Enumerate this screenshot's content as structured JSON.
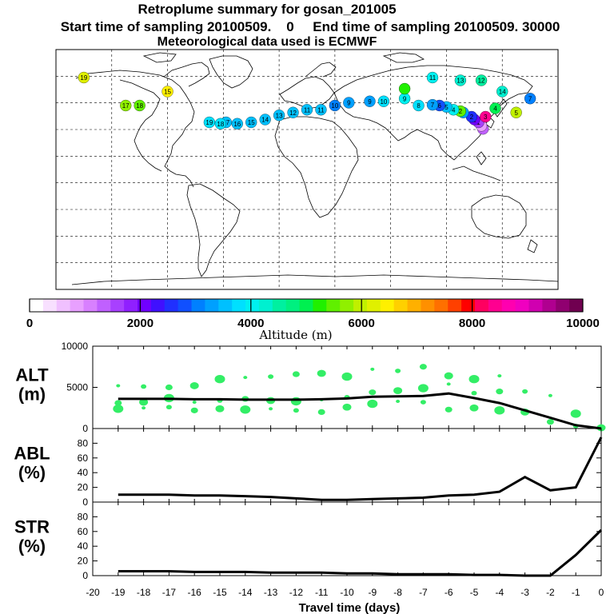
{
  "title": {
    "line1": "Retroplume summary for gosan_201005",
    "line2": "Start time of sampling 20100509.    0     End time of sampling 20100509. 30000",
    "line3": "Meteorological data used is ECMWF"
  },
  "colorbar": {
    "label": "Altitude (m)",
    "ticks": [
      "0",
      "2000",
      "4000",
      "6000",
      "8000",
      "10000"
    ],
    "colors": [
      "#ffffff",
      "#f8e0ff",
      "#f0c0ff",
      "#e8a0ff",
      "#d880ff",
      "#c060ff",
      "#a840ff",
      "#9020ff",
      "#7000ff",
      "#4010ff",
      "#2030ff",
      "#1050ff",
      "#0080ff",
      "#00a0ff",
      "#00c0ff",
      "#00e0ff",
      "#00f0f0",
      "#00f0d0",
      "#00f0a0",
      "#00f080",
      "#00f050",
      "#20f000",
      "#60f000",
      "#90f000",
      "#c0f000",
      "#e0f000",
      "#fff000",
      "#ffd000",
      "#ffb000",
      "#ff9000",
      "#ff7000",
      "#ff4000",
      "#ff0000",
      "#ff0060",
      "#ff0090",
      "#ff00b0",
      "#f000c0",
      "#d000b0",
      "#b00090",
      "#900070",
      "#700050"
    ]
  },
  "map": {
    "plume_points": [
      {
        "lon": 126.2,
        "lat": 33.3,
        "alt": 1200,
        "label": "0"
      },
      {
        "lon": 125.0,
        "lat": 35.5,
        "alt": 800,
        "label": ""
      },
      {
        "lon": 123.0,
        "lat": 38.0,
        "alt": 1500,
        "label": "1"
      },
      {
        "lon": 120.0,
        "lat": 40.0,
        "alt": 2000,
        "label": "1"
      },
      {
        "lon": 118.0,
        "lat": 42.0,
        "alt": 2600,
        "label": "2"
      },
      {
        "lon": 112.0,
        "lat": 45.0,
        "alt": 3200,
        "label": "3"
      },
      {
        "lon": 110.0,
        "lat": 46.0,
        "alt": 5500,
        "label": "2"
      },
      {
        "lon": 105.0,
        "lat": 47.0,
        "alt": 4000,
        "label": "4"
      },
      {
        "lon": 100.0,
        "lat": 49.0,
        "alt": 3600,
        "label": "5"
      },
      {
        "lon": 95.0,
        "lat": 50.0,
        "alt": 2800,
        "label": "6"
      },
      {
        "lon": 90.0,
        "lat": 50.5,
        "alt": 3300,
        "label": "7"
      },
      {
        "lon": 80.0,
        "lat": 50.0,
        "alt": 3800,
        "label": "8"
      },
      {
        "lon": 70.0,
        "lat": 55.0,
        "alt": 3900,
        "label": "9"
      },
      {
        "lon": 55.0,
        "lat": 53.0,
        "alt": 3700,
        "label": "10"
      },
      {
        "lon": 45.0,
        "lat": 53.0,
        "alt": 3300,
        "label": "9"
      },
      {
        "lon": 30.0,
        "lat": 52.0,
        "alt": 3200,
        "label": "9"
      },
      {
        "lon": 20.0,
        "lat": 50.0,
        "alt": 3000,
        "label": "10"
      },
      {
        "lon": 10.0,
        "lat": 47.0,
        "alt": 3400,
        "label": "11"
      },
      {
        "lon": 0.0,
        "lat": 47.0,
        "alt": 3500,
        "label": "11"
      },
      {
        "lon": -10.0,
        "lat": 45.0,
        "alt": 3600,
        "label": "12"
      },
      {
        "lon": -20.0,
        "lat": 43.0,
        "alt": 3500,
        "label": "13"
      },
      {
        "lon": -30.0,
        "lat": 40.0,
        "alt": 3400,
        "label": "14"
      },
      {
        "lon": -40.0,
        "lat": 38.0,
        "alt": 3500,
        "label": "15"
      },
      {
        "lon": -50.0,
        "lat": 37.0,
        "alt": 3500,
        "label": "16"
      },
      {
        "lon": -58.0,
        "lat": 38.0,
        "alt": 3600,
        "label": "17"
      },
      {
        "lon": -62.0,
        "lat": 37.0,
        "alt": 3700,
        "label": "18"
      },
      {
        "lon": -70.0,
        "lat": 38.0,
        "alt": 3800,
        "label": "19"
      },
      {
        "lon": 140.0,
        "lat": 60.0,
        "alt": 4300,
        "label": "14"
      },
      {
        "lon": 125.0,
        "lat": 68.0,
        "alt": 4500,
        "label": "12"
      },
      {
        "lon": 110.0,
        "lat": 68.0,
        "alt": 4200,
        "label": "13"
      },
      {
        "lon": 90.0,
        "lat": 70.0,
        "alt": 3900,
        "label": "11"
      },
      {
        "lon": 70.0,
        "lat": 62.0,
        "alt": 5200,
        "label": ""
      },
      {
        "lon": -120.0,
        "lat": 50.0,
        "alt": 5600,
        "label": "18"
      },
      {
        "lon": -130.0,
        "lat": 50.0,
        "alt": 5800,
        "label": "17"
      },
      {
        "lon": -160.0,
        "lat": 70.0,
        "alt": 6200,
        "label": "19"
      },
      {
        "lon": -100.0,
        "lat": 60.0,
        "alt": 6500,
        "label": "15"
      },
      {
        "lon": 150.0,
        "lat": 45.0,
        "alt": 6000,
        "label": "5"
      },
      {
        "lon": 135.0,
        "lat": 48.0,
        "alt": 5000,
        "label": "4"
      },
      {
        "lon": 160.0,
        "lat": 55.0,
        "alt": 3000,
        "label": "7"
      },
      {
        "lon": 128.0,
        "lat": 42.0,
        "alt": 8500,
        "label": "3"
      }
    ]
  },
  "chart_data": [
    {
      "type": "scatter",
      "panel": "ALT",
      "ylabel_line1": "ALT",
      "ylabel_line2": "(m)",
      "xlim": [
        -20,
        0
      ],
      "ylim": [
        0,
        10000
      ],
      "yticks": [
        "0",
        "5000",
        "10000"
      ],
      "series": [
        {
          "name": "mean altitude",
          "x": [
            -19,
            -18,
            -17,
            -16,
            -15,
            -14,
            -13,
            -12,
            -11,
            -10,
            -9,
            -8,
            -7,
            -6,
            -5,
            -4,
            -3,
            -2,
            -1,
            0
          ],
          "values": [
            3600,
            3600,
            3600,
            3550,
            3550,
            3500,
            3500,
            3500,
            3550,
            3650,
            3850,
            3900,
            3950,
            4250,
            3700,
            3100,
            2200,
            1300,
            400,
            0
          ]
        },
        {
          "name": "plume particles",
          "points": [
            {
              "x": -19,
              "y": 5200
            },
            {
              "x": -19,
              "y": 3100
            },
            {
              "x": -19,
              "y": 2400
            },
            {
              "x": -18,
              "y": 5100
            },
            {
              "x": -18,
              "y": 3200
            },
            {
              "x": -18,
              "y": 2500
            },
            {
              "x": -17,
              "y": 5000
            },
            {
              "x": -17,
              "y": 3700
            },
            {
              "x": -17,
              "y": 2600
            },
            {
              "x": -16,
              "y": 5200
            },
            {
              "x": -16,
              "y": 3200
            },
            {
              "x": -16,
              "y": 2200
            },
            {
              "x": -15,
              "y": 6000
            },
            {
              "x": -15,
              "y": 3400
            },
            {
              "x": -15,
              "y": 2400
            },
            {
              "x": -14,
              "y": 6200
            },
            {
              "x": -14,
              "y": 3600
            },
            {
              "x": -14,
              "y": 2300
            },
            {
              "x": -13,
              "y": 6300
            },
            {
              "x": -13,
              "y": 3400
            },
            {
              "x": -13,
              "y": 2400
            },
            {
              "x": -12,
              "y": 6600
            },
            {
              "x": -12,
              "y": 3300
            },
            {
              "x": -12,
              "y": 2200
            },
            {
              "x": -11,
              "y": 6700
            },
            {
              "x": -11,
              "y": 3500
            },
            {
              "x": -11,
              "y": 2000
            },
            {
              "x": -10,
              "y": 6300
            },
            {
              "x": -10,
              "y": 3800
            },
            {
              "x": -10,
              "y": 2600
            },
            {
              "x": -9,
              "y": 7200
            },
            {
              "x": -9,
              "y": 4400
            },
            {
              "x": -9,
              "y": 3000
            },
            {
              "x": -8,
              "y": 7000
            },
            {
              "x": -8,
              "y": 4600
            },
            {
              "x": -8,
              "y": 3300
            },
            {
              "x": -7,
              "y": 7500
            },
            {
              "x": -7,
              "y": 4900
            },
            {
              "x": -7,
              "y": 3200
            },
            {
              "x": -6,
              "y": 6400
            },
            {
              "x": -6,
              "y": 5400
            },
            {
              "x": -6,
              "y": 2300
            },
            {
              "x": -5,
              "y": 6000
            },
            {
              "x": -5,
              "y": 4300
            },
            {
              "x": -5,
              "y": 2500
            },
            {
              "x": -4,
              "y": 6400
            },
            {
              "x": -4,
              "y": 4500
            },
            {
              "x": -4,
              "y": 2200
            },
            {
              "x": -3,
              "y": 4500
            },
            {
              "x": -3,
              "y": 2000
            },
            {
              "x": -2,
              "y": 4000
            },
            {
              "x": -2,
              "y": 800
            },
            {
              "x": -1,
              "y": 1800
            },
            {
              "x": -1,
              "y": 300
            },
            {
              "x": 0,
              "y": 100
            }
          ]
        }
      ]
    },
    {
      "type": "line",
      "panel": "ABL",
      "ylabel_line1": "ABL",
      "ylabel_line2": "(%)",
      "xlim": [
        -20,
        0
      ],
      "ylim": [
        0,
        100
      ],
      "yticks": [
        "0",
        "20",
        "40",
        "60",
        "80"
      ],
      "x": [
        -19,
        -18,
        -17,
        -16,
        -15,
        -14,
        -13,
        -12,
        -11,
        -10,
        -9,
        -8,
        -7,
        -6,
        -5,
        -4,
        -3,
        -2,
        -1,
        0
      ],
      "values": [
        10,
        10,
        10,
        9,
        9,
        8,
        7,
        5,
        3,
        3,
        4,
        5,
        6,
        9,
        10,
        14,
        34,
        16,
        20,
        88
      ]
    },
    {
      "type": "line",
      "panel": "STR",
      "ylabel_line1": "STR",
      "ylabel_line2": "(%)",
      "xlim": [
        -20,
        0
      ],
      "ylim": [
        0,
        100
      ],
      "yticks": [
        "0",
        "20",
        "40",
        "60",
        "80"
      ],
      "x": [
        -19,
        -18,
        -17,
        -16,
        -15,
        -14,
        -13,
        -12,
        -11,
        -10,
        -9,
        -8,
        -7,
        -6,
        -5,
        -4,
        -3,
        -2,
        -1,
        0
      ],
      "values": [
        6,
        6,
        6,
        5,
        5,
        5,
        4,
        4,
        4,
        3,
        3,
        2,
        2,
        2,
        1,
        1,
        0,
        0,
        28,
        62
      ]
    }
  ],
  "xaxis": {
    "title": "Travel time (days)",
    "ticks": [
      "-20",
      "-19",
      "-18",
      "-17",
      "-16",
      "-15",
      "-14",
      "-13",
      "-12",
      "-11",
      "-10",
      "-9",
      "-8",
      "-7",
      "-6",
      "-5",
      "-4",
      "-3",
      "-2",
      "-1",
      "0"
    ]
  }
}
